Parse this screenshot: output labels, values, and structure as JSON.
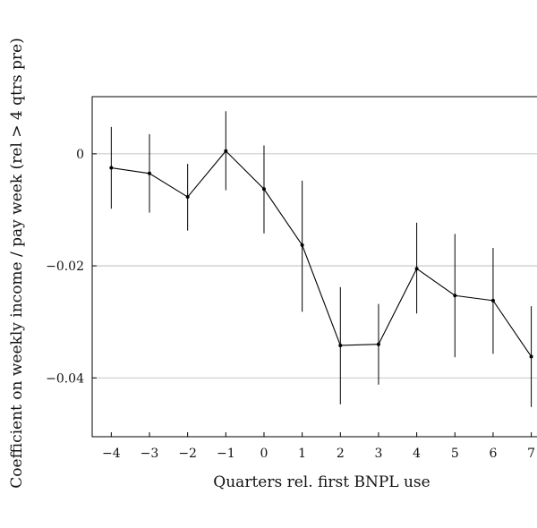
{
  "chart_data": {
    "type": "line",
    "xlabel": "Quarters rel. first BNPL use",
    "ylabel": "Coefficient on weekly income / pay week (rel > 4 qtrs pre)",
    "x": [
      -4,
      -3,
      -2,
      -1,
      0,
      1,
      2,
      3,
      4,
      5,
      6,
      7
    ],
    "x_tick_labels": [
      "−4",
      "−3",
      "−2",
      "−1",
      "0",
      "1",
      "2",
      "3",
      "4",
      "5",
      "6",
      "7"
    ],
    "y_ticks": [
      0,
      -0.02,
      -0.04
    ],
    "y_tick_labels": [
      "0",
      "−0.02",
      "−0.04"
    ],
    "series": [
      {
        "values": [
          -0.0025,
          -0.0035,
          -0.0077,
          0.0005,
          -0.0063,
          -0.0163,
          -0.0342,
          -0.034,
          -0.0205,
          -0.0253,
          -0.0262,
          -0.0362
        ],
        "ci_low": [
          -0.0098,
          -0.0105,
          -0.0137,
          -0.0065,
          -0.0142,
          -0.0282,
          -0.0447,
          -0.0412,
          -0.0285,
          -0.0363,
          -0.0357,
          -0.0452
        ],
        "ci_high": [
          0.0048,
          0.0035,
          -0.0018,
          0.0076,
          0.0015,
          -0.0048,
          -0.0238,
          -0.0268,
          -0.0123,
          -0.0143,
          -0.0168,
          -0.0272
        ],
        "color": "#000000"
      }
    ],
    "xlim": [
      -4.5,
      7.15
    ],
    "ylim": [
      -0.0505,
      0.0102
    ],
    "grid": "horizontal at y ticks",
    "legend": "none"
  }
}
